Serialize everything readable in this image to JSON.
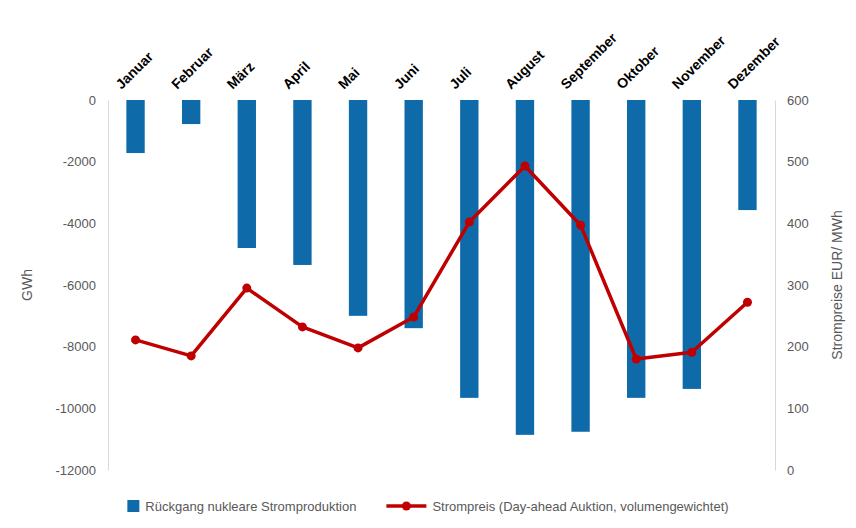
{
  "chart_data": {
    "type": "bar",
    "categories": [
      "Januar",
      "Februar",
      "März",
      "April",
      "Mai",
      "Juni",
      "Juli",
      "August",
      "September",
      "Oktober",
      "November",
      "Dezember"
    ],
    "series": [
      {
        "name": "Rückgang nukleare Stromproduktion",
        "type": "bar",
        "color": "#0f6aa9",
        "values": [
          -1720,
          -780,
          -4800,
          -5350,
          -7000,
          -7400,
          -9660,
          -10860,
          -10760,
          -9660,
          -9370,
          -3570
        ]
      },
      {
        "name": "Strompreis (Day-ahead Auktion, volumengewichtet)",
        "type": "line",
        "color": "#c00000",
        "marker": "circle",
        "axis": "y2",
        "values": [
          211,
          185,
          295,
          232,
          198,
          248,
          402,
          493,
          397,
          180,
          191,
          272
        ]
      }
    ],
    "ylabel": "GWh",
    "y2label": "Strompreise EUR/ MWh",
    "ylim": [
      -12000,
      0
    ],
    "yticks": [
      -12000,
      -10000,
      -8000,
      -6000,
      -4000,
      -2000,
      0
    ],
    "y2lim": [
      0,
      600
    ],
    "y2ticks": [
      0,
      100,
      200,
      300,
      400,
      500,
      600
    ],
    "grid": false,
    "legend": "bottom"
  }
}
